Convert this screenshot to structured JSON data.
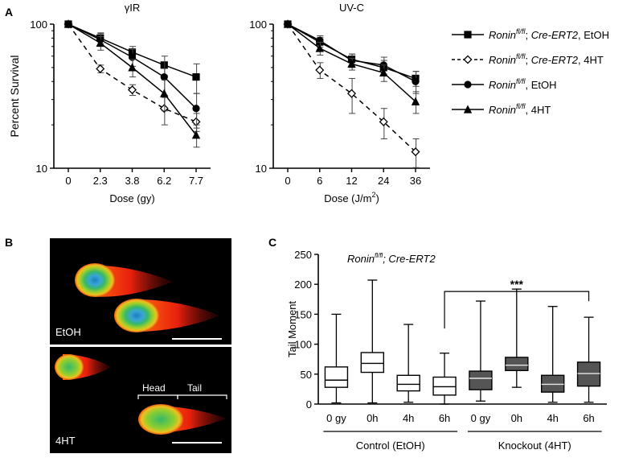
{
  "panels": {
    "a": "A",
    "b": "B",
    "c": "C"
  },
  "colors": {
    "ink": "#000000",
    "error_bar": "#444444",
    "box_dark": "#555555",
    "comet_bg": "#000000"
  },
  "legend": [
    {
      "gene": "Ronin",
      "sup": "fl/fl",
      "rest1": "; ",
      "cre": "Cre-ERT2",
      "rest2": ", EtOH",
      "marker": "square",
      "dashed": false
    },
    {
      "gene": "Ronin",
      "sup": "fl/fl",
      "rest1": "; ",
      "cre": "Cre-ERT2",
      "rest2": ", 4HT",
      "marker": "diamond",
      "dashed": true
    },
    {
      "gene": "Ronin",
      "sup": "fl/fl",
      "rest1": "",
      "cre": "",
      "rest2": ", EtOH",
      "marker": "circle",
      "dashed": false
    },
    {
      "gene": "Ronin",
      "sup": "fl/fl",
      "rest1": "",
      "cre": "",
      "rest2": ", 4HT",
      "marker": "triangle",
      "dashed": false
    }
  ],
  "comet": {
    "top_label": "EtOH",
    "bottom_label": "4HT",
    "head_label": "Head",
    "tail_label": "Tail"
  },
  "chart_data": [
    {
      "id": "gamma",
      "type": "line",
      "title": "γIR",
      "xlabel": "Dose (gy)",
      "xlabel_sup": "",
      "xlabel_after": "",
      "ylabel": "Percent Survival",
      "yscale": "log",
      "ylim": [
        10,
        100
      ],
      "ytick_labels": [
        "100",
        "10"
      ],
      "ytick_values": [
        100,
        10
      ],
      "categories": [
        "0",
        "2.3",
        "3.8",
        "6.2",
        "7.7"
      ],
      "series": [
        {
          "name": "Ronin fl/fl; Cre-ERT2, EtOH",
          "marker": "square",
          "dashed": false,
          "values": [
            100,
            80,
            64,
            52,
            43
          ],
          "errors": [
            0,
            7,
            6,
            8,
            10
          ]
        },
        {
          "name": "Ronin fl/fl; Cre-ERT2, 4HT",
          "marker": "diamond",
          "dashed": true,
          "values": [
            100,
            49,
            35,
            26,
            21
          ],
          "errors": [
            0,
            3,
            3,
            6,
            3
          ]
        },
        {
          "name": "Ronin fl/fl, EtOH",
          "marker": "circle",
          "dashed": false,
          "values": [
            100,
            78,
            59,
            43,
            26
          ],
          "errors": [
            0,
            8,
            8,
            12,
            7
          ]
        },
        {
          "name": "Ronin fl/fl, 4HT",
          "marker": "triangle",
          "dashed": false,
          "values": [
            100,
            74,
            50,
            33,
            17
          ],
          "errors": [
            0,
            8,
            7,
            8,
            3
          ]
        }
      ]
    },
    {
      "id": "uvc",
      "type": "line",
      "title": "UV-C",
      "xlabel": "Dose (J/m",
      "xlabel_sup": "2",
      "xlabel_after": ")",
      "ylabel": "",
      "yscale": "log",
      "ylim": [
        10,
        100
      ],
      "ytick_labels": [
        "100",
        "10"
      ],
      "ytick_values": [
        100,
        10
      ],
      "categories": [
        "0",
        "6",
        "12",
        "24",
        "36"
      ],
      "series": [
        {
          "name": "Ronin fl/fl; Cre-ERT2, EtOH",
          "marker": "square",
          "dashed": false,
          "values": [
            100,
            75,
            57,
            50,
            42
          ],
          "errors": [
            0,
            6,
            5,
            6,
            5
          ]
        },
        {
          "name": "Ronin fl/fl; Cre-ERT2, 4HT",
          "marker": "diamond",
          "dashed": true,
          "values": [
            100,
            48,
            33,
            21,
            13
          ],
          "errors": [
            0,
            6,
            9,
            5,
            3
          ]
        },
        {
          "name": "Ronin fl/fl, EtOH",
          "marker": "circle",
          "dashed": false,
          "values": [
            100,
            77,
            56,
            52,
            40
          ],
          "errors": [
            0,
            6,
            6,
            7,
            7
          ]
        },
        {
          "name": "Ronin fl/fl, 4HT",
          "marker": "triangle",
          "dashed": false,
          "values": [
            100,
            68,
            53,
            46,
            29
          ],
          "errors": [
            0,
            7,
            5,
            6,
            5
          ]
        }
      ]
    },
    {
      "id": "tail",
      "type": "box",
      "title_gene": "Ronin",
      "title_sup": "fl/fl",
      "title_rest": "; Cre-ERT2",
      "ylabel": "Tail Moment",
      "ylim": [
        0,
        250
      ],
      "yticks": [
        0,
        50,
        100,
        150,
        200,
        250
      ],
      "categories": [
        "0 gy",
        "0h",
        "4h",
        "6h",
        "0 gy",
        "0h",
        "4h",
        "6h"
      ],
      "groups": [
        {
          "label": "Control (EtOH)",
          "from": 0,
          "to": 3
        },
        {
          "label": "Knockout (4HT)",
          "from": 4,
          "to": 7
        }
      ],
      "significance": {
        "label": "***",
        "from": 3,
        "to": 7,
        "y": 188
      },
      "boxes": [
        {
          "min": 2,
          "q1": 28,
          "median": 40,
          "q3": 62,
          "max": 150,
          "filled": false
        },
        {
          "min": 2,
          "q1": 53,
          "median": 68,
          "q3": 86,
          "max": 207,
          "filled": false
        },
        {
          "min": 3,
          "q1": 22,
          "median": 33,
          "q3": 48,
          "max": 133,
          "filled": false
        },
        {
          "min": 0,
          "q1": 15,
          "median": 29,
          "q3": 45,
          "max": 85,
          "filled": false
        },
        {
          "min": 5,
          "q1": 24,
          "median": 43,
          "q3": 55,
          "max": 172,
          "filled": true
        },
        {
          "min": 28,
          "q1": 56,
          "median": 65,
          "q3": 78,
          "max": 192,
          "filled": true
        },
        {
          "min": 3,
          "q1": 20,
          "median": 33,
          "q3": 48,
          "max": 163,
          "filled": true
        },
        {
          "min": 3,
          "q1": 30,
          "median": 51,
          "q3": 70,
          "max": 145,
          "filled": true
        }
      ]
    }
  ]
}
